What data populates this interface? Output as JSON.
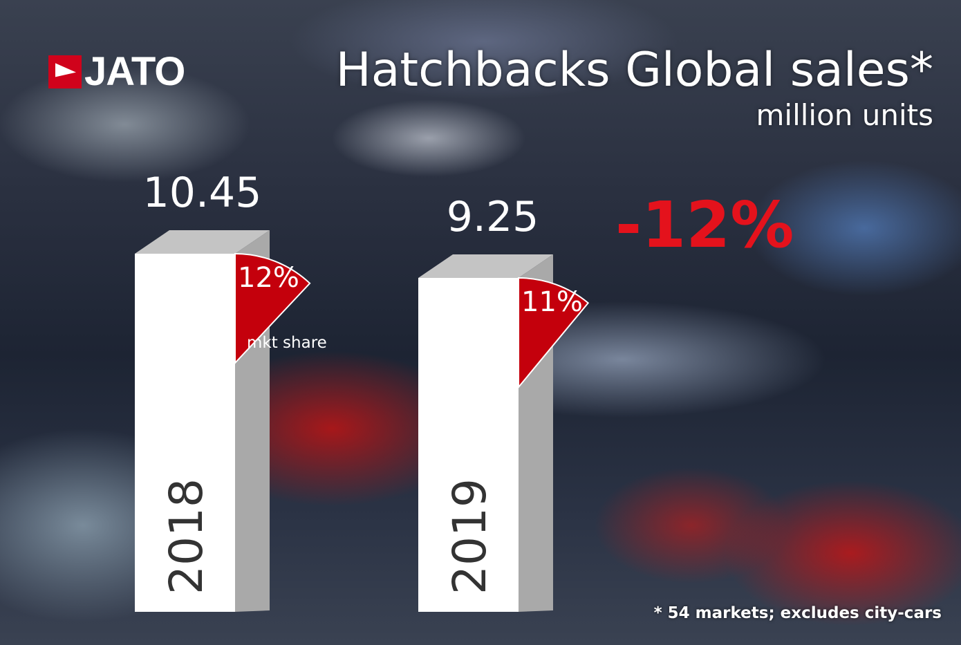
{
  "logo": {
    "text": "JATO",
    "color": "#d0021b"
  },
  "header": {
    "title": "Hatchbacks Global sales*",
    "subtitle": "million units"
  },
  "change_label": "-12%",
  "footnote": "* 54 markets; excludes city-cars",
  "share_caption": "mkt share",
  "colors": {
    "bar_front": "#ffffff",
    "bar_side": "#a9a9a9",
    "bar_top": "#c4c4c4",
    "share": "#c4000c",
    "change": "#e4121c",
    "year_text": "#333333"
  },
  "chart_data": {
    "type": "bar",
    "title": "Hatchbacks Global sales*",
    "ylabel": "million units",
    "categories": [
      "2018",
      "2019"
    ],
    "values": [
      10.45,
      9.25
    ],
    "value_labels": [
      "10.45",
      "9.25"
    ],
    "market_share": [
      12,
      11
    ],
    "market_share_labels": [
      "12%",
      "11%"
    ],
    "change": "-12%"
  }
}
